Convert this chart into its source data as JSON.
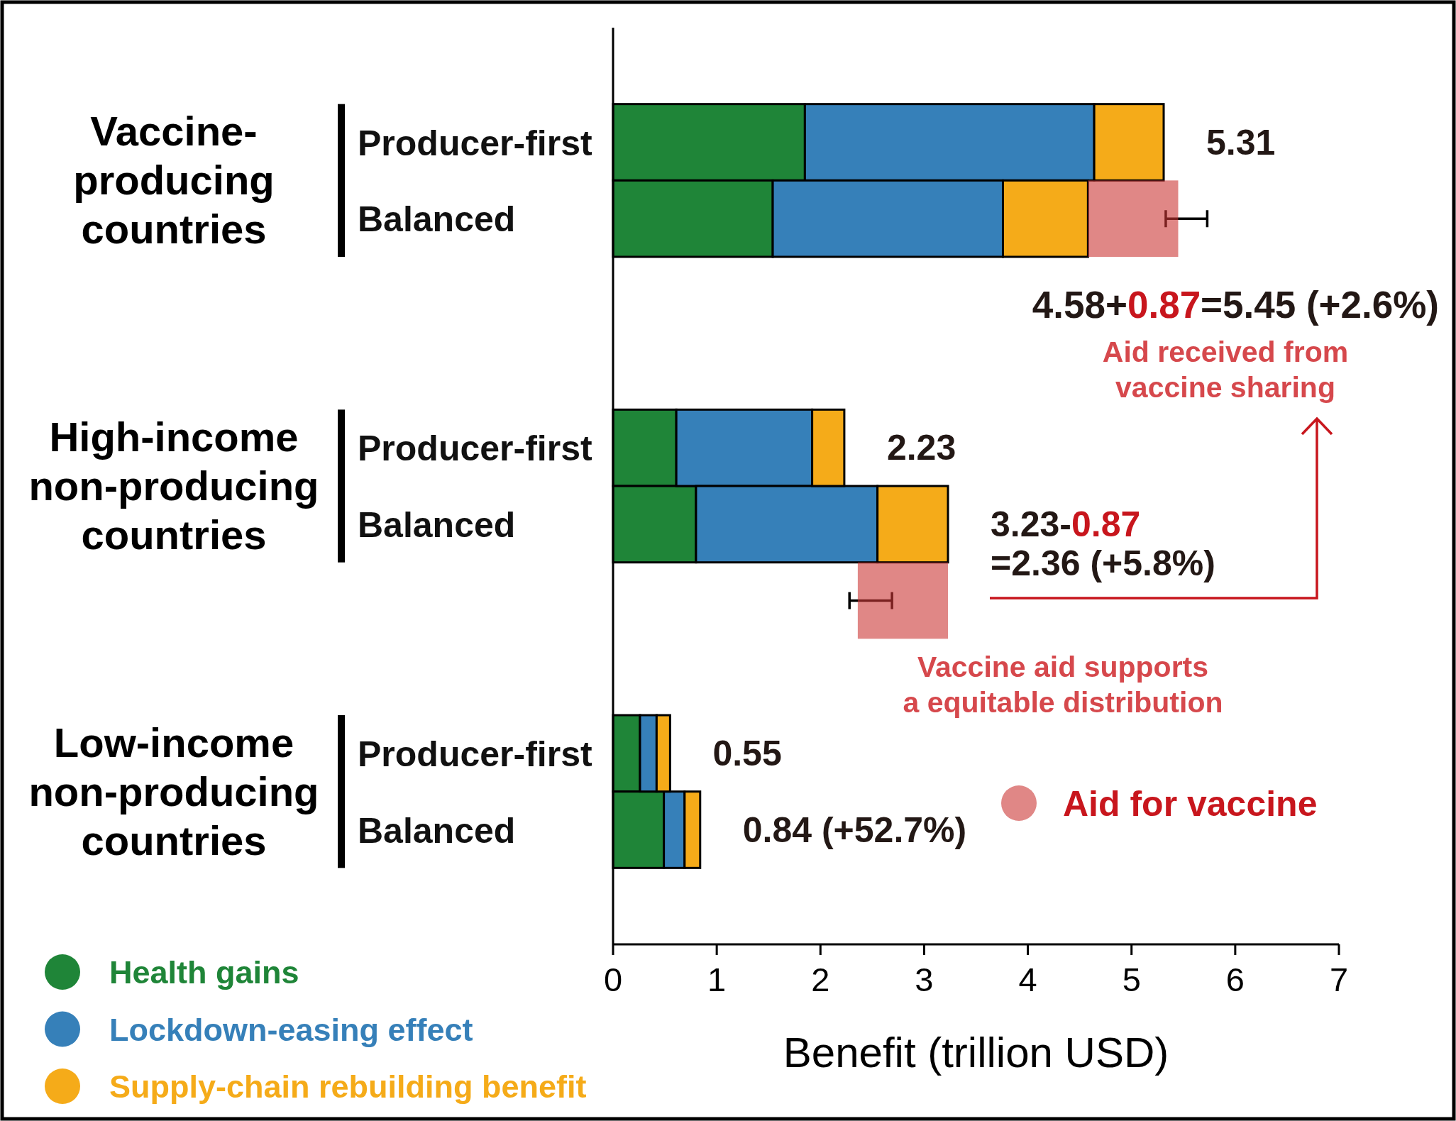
{
  "chart_data": {
    "type": "bar",
    "orientation": "horizontal",
    "stacked": true,
    "categories": [
      "Producer-first",
      "Balanced",
      null,
      null,
      "Producer-first",
      "Balanced",
      null,
      null,
      "Producer-first",
      "Balanced"
    ],
    "series": [
      {
        "name": "Health gains",
        "color": "#1f8538",
        "values": [
          1.85,
          1.54,
          null,
          null,
          0.61,
          0.8,
          null,
          null,
          0.26,
          0.49
        ]
      },
      {
        "name": "Lockdown-easing effect",
        "color": "#3680b9",
        "values": [
          2.79,
          2.22,
          null,
          null,
          1.31,
          1.75,
          null,
          null,
          0.16,
          0.2
        ]
      },
      {
        "name": "Supply-chain rebuilding benefit",
        "color": "#f5ab19",
        "values": [
          0.67,
          0.82,
          null,
          null,
          0.31,
          0.68,
          null,
          null,
          0.13,
          0.15
        ]
      },
      {
        "name": "Aid for vaccine",
        "color": "#e08786",
        "base": [
          null,
          4.58,
          null,
          null,
          null,
          null,
          2.36,
          null,
          null,
          null
        ],
        "values": [
          null,
          0.87,
          null,
          null,
          null,
          null,
          0.87,
          null,
          null,
          null
        ],
        "errors": [
          null,
          [
            5.33,
            5.73
          ],
          null,
          null,
          null,
          null,
          [
            2.28,
            2.69
          ],
          null,
          null,
          null
        ]
      }
    ],
    "xlim": [
      0,
      7
    ],
    "xticks": [
      0,
      1,
      2,
      3,
      4,
      5,
      6,
      7
    ],
    "xlabel": "Benefit (trillion USD)",
    "totals": [
      "5.31",
      "4.58+0.87=5.45 (+2.6%)",
      null,
      null,
      "2.23",
      "3.23-0.87\n=2.36 (+5.8%)",
      null,
      null,
      "0.55",
      "0.84 (+52.7%)"
    ],
    "annotations": [
      "Vaccine-\nproducing\ncountries",
      "High-income\nnon-producing\ncountries",
      "Low-income\nnon-producing\ncountries",
      "Aid received from\nvaccine sharing",
      "Vaccine aid supports\na equitable distribution"
    ],
    "legend": "bottom left"
  }
}
